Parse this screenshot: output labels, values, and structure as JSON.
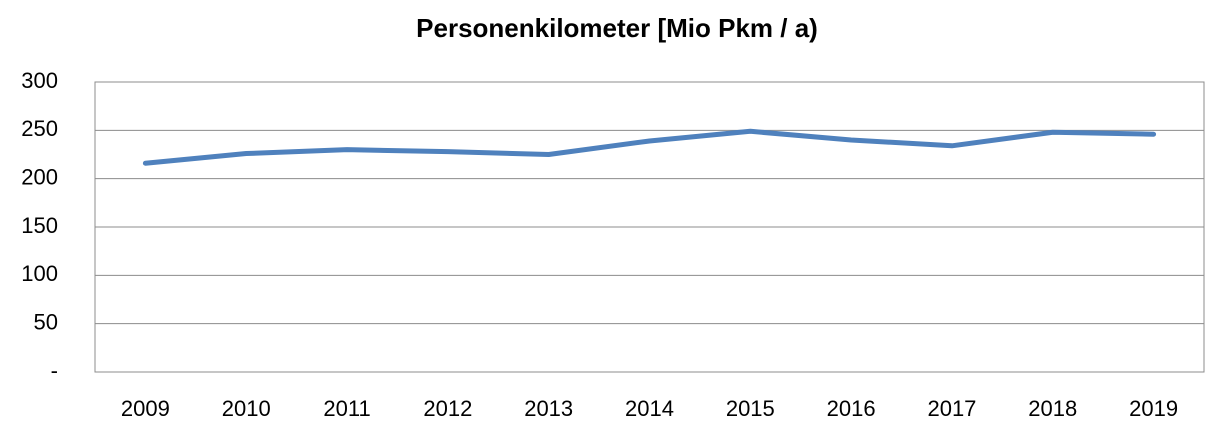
{
  "chart_data": {
    "type": "line",
    "title": "Personenkilometer [Mio Pkm / a)",
    "categories": [
      "2009",
      "2010",
      "2011",
      "2012",
      "2013",
      "2014",
      "2015",
      "2016",
      "2017",
      "2018",
      "2019"
    ],
    "series": [
      {
        "color": "#4f81bd",
        "values": [
          216,
          226,
          230,
          228,
          225,
          239,
          249,
          240,
          234,
          248,
          246
        ]
      }
    ],
    "ylim": [
      0,
      300
    ],
    "yticks": [
      {
        "value": 0,
        "label": "-"
      },
      50,
      100,
      150,
      200,
      250,
      300
    ],
    "grid": true
  }
}
